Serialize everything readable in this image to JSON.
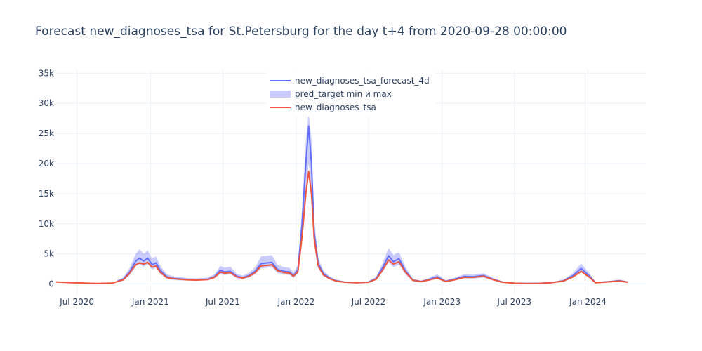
{
  "chart_data": {
    "type": "line",
    "title": "Forecast new_diagnoses_tsa for St.Petersburg for the day t+4 from 2020-09-28 00:00:00",
    "xlabel": "",
    "ylabel": "",
    "xlim": [
      "2020-05-10",
      "2024-05-25"
    ],
    "ylim": [
      -1800,
      35500
    ],
    "grid": true,
    "legend_position": "top-center",
    "x_ticks": [
      {
        "date": "2020-07-01",
        "label": "Jul 2020"
      },
      {
        "date": "2021-01-01",
        "label": "Jan 2021"
      },
      {
        "date": "2021-07-01",
        "label": "Jul 2021"
      },
      {
        "date": "2022-01-01",
        "label": "Jan 2022"
      },
      {
        "date": "2022-07-01",
        "label": "Jul 2022"
      },
      {
        "date": "2023-01-01",
        "label": "Jan 2023"
      },
      {
        "date": "2023-07-01",
        "label": "Jul 2023"
      },
      {
        "date": "2024-01-01",
        "label": "Jan 2024"
      }
    ],
    "y_ticks": [
      {
        "value": 0,
        "label": "0"
      },
      {
        "value": 5000,
        "label": "5k"
      },
      {
        "value": 10000,
        "label": "10k"
      },
      {
        "value": 15000,
        "label": "15k"
      },
      {
        "value": 20000,
        "label": "20k"
      },
      {
        "value": 25000,
        "label": "25k"
      },
      {
        "value": 30000,
        "label": "30k"
      },
      {
        "value": 35000,
        "label": "35k"
      }
    ],
    "legend": [
      {
        "name": "new_diagnoses_tsa_forecast_4d",
        "color": "#636efa",
        "kind": "line"
      },
      {
        "name": "pred_target min и max",
        "color": "rgba(99,110,250,0.35)",
        "kind": "band"
      },
      {
        "name": "new_diagnoses_tsa",
        "color": "#ef553b",
        "kind": "line"
      }
    ],
    "series": [
      {
        "name": "new_diagnoses_tsa",
        "color": "#ef553b",
        "points": [
          [
            "2020-05-10",
            350
          ],
          [
            "2020-06-01",
            280
          ],
          [
            "2020-06-20",
            200
          ],
          [
            "2020-07-10",
            180
          ],
          [
            "2020-08-01",
            120
          ],
          [
            "2020-08-20",
            100
          ],
          [
            "2020-09-10",
            120
          ],
          [
            "2020-09-28",
            150
          ],
          [
            "2020-10-10",
            400
          ],
          [
            "2020-10-25",
            700
          ],
          [
            "2020-11-10",
            1800
          ],
          [
            "2020-11-25",
            3200
          ],
          [
            "2020-12-05",
            3500
          ],
          [
            "2020-12-15",
            3300
          ],
          [
            "2020-12-25",
            3600
          ],
          [
            "2021-01-05",
            2800
          ],
          [
            "2021-01-15",
            3000
          ],
          [
            "2021-01-25",
            2000
          ],
          [
            "2021-02-10",
            1100
          ],
          [
            "2021-02-25",
            900
          ],
          [
            "2021-03-15",
            800
          ],
          [
            "2021-04-05",
            700
          ],
          [
            "2021-04-25",
            650
          ],
          [
            "2021-05-10",
            700
          ],
          [
            "2021-05-25",
            750
          ],
          [
            "2021-06-10",
            1100
          ],
          [
            "2021-06-25",
            2000
          ],
          [
            "2021-07-05",
            1800
          ],
          [
            "2021-07-20",
            1900
          ],
          [
            "2021-08-05",
            1200
          ],
          [
            "2021-08-20",
            1000
          ],
          [
            "2021-09-05",
            1300
          ],
          [
            "2021-09-20",
            1900
          ],
          [
            "2021-10-05",
            3000
          ],
          [
            "2021-10-20",
            3100
          ],
          [
            "2021-11-01",
            3200
          ],
          [
            "2021-11-15",
            2200
          ],
          [
            "2021-12-01",
            1900
          ],
          [
            "2021-12-15",
            1800
          ],
          [
            "2021-12-25",
            1300
          ],
          [
            "2022-01-05",
            2000
          ],
          [
            "2022-01-15",
            7500
          ],
          [
            "2022-01-25",
            15000
          ],
          [
            "2022-02-01",
            18700
          ],
          [
            "2022-02-08",
            15000
          ],
          [
            "2022-02-15",
            7500
          ],
          [
            "2022-02-25",
            3000
          ],
          [
            "2022-03-10",
            1500
          ],
          [
            "2022-03-25",
            900
          ],
          [
            "2022-04-10",
            500
          ],
          [
            "2022-05-01",
            300
          ],
          [
            "2022-06-01",
            200
          ],
          [
            "2022-07-01",
            300
          ],
          [
            "2022-07-20",
            800
          ],
          [
            "2022-08-05",
            2300
          ],
          [
            "2022-08-20",
            4000
          ],
          [
            "2022-09-01",
            3300
          ],
          [
            "2022-09-15",
            3700
          ],
          [
            "2022-10-01",
            2000
          ],
          [
            "2022-10-20",
            600
          ],
          [
            "2022-11-10",
            400
          ],
          [
            "2022-12-01",
            700
          ],
          [
            "2022-12-20",
            1000
          ],
          [
            "2023-01-10",
            400
          ],
          [
            "2023-02-01",
            700
          ],
          [
            "2023-02-25",
            1100
          ],
          [
            "2023-03-20",
            1100
          ],
          [
            "2023-04-15",
            1300
          ],
          [
            "2023-05-10",
            700
          ],
          [
            "2023-06-01",
            300
          ],
          [
            "2023-07-01",
            120
          ],
          [
            "2023-08-01",
            80
          ],
          [
            "2023-09-01",
            100
          ],
          [
            "2023-10-01",
            200
          ],
          [
            "2023-11-01",
            500
          ],
          [
            "2023-11-25",
            1200
          ],
          [
            "2023-12-15",
            2100
          ],
          [
            "2024-01-05",
            1100
          ],
          [
            "2024-01-20",
            200
          ],
          [
            "2024-02-10",
            300
          ],
          [
            "2024-03-01",
            400
          ],
          [
            "2024-03-20",
            500
          ],
          [
            "2024-04-10",
            300
          ]
        ]
      },
      {
        "name": "new_diagnoses_tsa_forecast_4d",
        "color": "#636efa",
        "points": [
          [
            "2020-10-10",
            450
          ],
          [
            "2020-10-25",
            800
          ],
          [
            "2020-11-10",
            2000
          ],
          [
            "2020-11-25",
            3800
          ],
          [
            "2020-12-05",
            4300
          ],
          [
            "2020-12-15",
            3800
          ],
          [
            "2020-12-25",
            4300
          ],
          [
            "2021-01-05",
            3200
          ],
          [
            "2021-01-15",
            3500
          ],
          [
            "2021-01-25",
            2300
          ],
          [
            "2021-02-10",
            1250
          ],
          [
            "2021-02-25",
            950
          ],
          [
            "2021-03-15",
            850
          ],
          [
            "2021-04-05",
            750
          ],
          [
            "2021-04-25",
            700
          ],
          [
            "2021-05-10",
            750
          ],
          [
            "2021-05-25",
            800
          ],
          [
            "2021-06-10",
            1200
          ],
          [
            "2021-06-25",
            2300
          ],
          [
            "2021-07-05",
            2000
          ],
          [
            "2021-07-20",
            2100
          ],
          [
            "2021-08-05",
            1300
          ],
          [
            "2021-08-20",
            1050
          ],
          [
            "2021-09-05",
            1400
          ],
          [
            "2021-09-20",
            2100
          ],
          [
            "2021-10-05",
            3400
          ],
          [
            "2021-10-20",
            3500
          ],
          [
            "2021-11-01",
            3600
          ],
          [
            "2021-11-15",
            2400
          ],
          [
            "2021-12-01",
            2100
          ],
          [
            "2021-12-15",
            2000
          ],
          [
            "2021-12-25",
            1400
          ],
          [
            "2022-01-05",
            2300
          ],
          [
            "2022-01-15",
            9500
          ],
          [
            "2022-01-25",
            20000
          ],
          [
            "2022-02-01",
            26200
          ],
          [
            "2022-02-08",
            20000
          ],
          [
            "2022-02-15",
            8500
          ],
          [
            "2022-02-25",
            3400
          ],
          [
            "2022-03-10",
            1700
          ],
          [
            "2022-03-25",
            1000
          ],
          [
            "2022-04-10",
            550
          ],
          [
            "2022-05-01",
            330
          ],
          [
            "2022-06-01",
            220
          ],
          [
            "2022-07-01",
            330
          ],
          [
            "2022-07-20",
            900
          ],
          [
            "2022-08-05",
            2700
          ],
          [
            "2022-08-20",
            4700
          ],
          [
            "2022-09-01",
            3700
          ],
          [
            "2022-09-15",
            4200
          ],
          [
            "2022-10-01",
            2200
          ],
          [
            "2022-10-20",
            650
          ],
          [
            "2022-11-10",
            420
          ],
          [
            "2022-12-01",
            800
          ],
          [
            "2022-12-20",
            1200
          ],
          [
            "2023-01-10",
            450
          ],
          [
            "2023-02-01",
            800
          ],
          [
            "2023-02-25",
            1250
          ],
          [
            "2023-03-20",
            1200
          ],
          [
            "2023-04-15",
            1400
          ],
          [
            "2023-05-10",
            750
          ],
          [
            "2023-06-01",
            330
          ],
          [
            "2023-07-01",
            130
          ],
          [
            "2023-08-01",
            90
          ],
          [
            "2023-09-01",
            110
          ],
          [
            "2023-10-01",
            220
          ],
          [
            "2023-11-01",
            550
          ],
          [
            "2023-11-25",
            1400
          ],
          [
            "2023-12-15",
            2600
          ],
          [
            "2024-01-05",
            1300
          ],
          [
            "2024-01-20",
            230
          ],
          [
            "2024-02-10",
            330
          ],
          [
            "2024-03-01",
            430
          ],
          [
            "2024-03-20",
            550
          ],
          [
            "2024-04-10",
            320
          ]
        ]
      }
    ],
    "band": {
      "name": "pred_target min и max",
      "color": "rgba(99,110,250,0.35)",
      "points": [
        [
          "2020-10-10",
          300,
          650
        ],
        [
          "2020-10-25",
          550,
          1100
        ],
        [
          "2020-11-10",
          1400,
          2700
        ],
        [
          "2020-11-25",
          2900,
          5000
        ],
        [
          "2020-12-05",
          3300,
          5800
        ],
        [
          "2020-12-15",
          2900,
          5000
        ],
        [
          "2020-12-25",
          3300,
          5600
        ],
        [
          "2021-01-05",
          2400,
          4200
        ],
        [
          "2021-01-15",
          2700,
          4600
        ],
        [
          "2021-01-25",
          1700,
          3100
        ],
        [
          "2021-02-10",
          900,
          1700
        ],
        [
          "2021-02-25",
          700,
          1300
        ],
        [
          "2021-03-15",
          600,
          1150
        ],
        [
          "2021-04-05",
          550,
          1000
        ],
        [
          "2021-04-25",
          500,
          950
        ],
        [
          "2021-05-10",
          550,
          1000
        ],
        [
          "2021-05-25",
          600,
          1100
        ],
        [
          "2021-06-10",
          900,
          1600
        ],
        [
          "2021-06-25",
          1700,
          3000
        ],
        [
          "2021-07-05",
          1500,
          2700
        ],
        [
          "2021-07-20",
          1600,
          2900
        ],
        [
          "2021-08-05",
          950,
          1700
        ],
        [
          "2021-08-20",
          800,
          1400
        ],
        [
          "2021-09-05",
          1050,
          1900
        ],
        [
          "2021-09-20",
          1600,
          2800
        ],
        [
          "2021-10-05",
          2600,
          4600
        ],
        [
          "2021-10-20",
          2700,
          4700
        ],
        [
          "2021-11-01",
          2800,
          4800
        ],
        [
          "2021-11-15",
          1800,
          3200
        ],
        [
          "2021-12-01",
          1600,
          2800
        ],
        [
          "2021-12-15",
          1500,
          2700
        ],
        [
          "2021-12-25",
          1000,
          1900
        ],
        [
          "2022-01-05",
          1700,
          3100
        ],
        [
          "2022-01-15",
          7000,
          12000
        ],
        [
          "2022-01-25",
          15500,
          24000
        ],
        [
          "2022-02-01",
          20000,
          28500
        ],
        [
          "2022-02-08",
          15500,
          24000
        ],
        [
          "2022-02-15",
          6500,
          10500
        ],
        [
          "2022-02-25",
          2600,
          4300
        ],
        [
          "2022-03-10",
          1300,
          2200
        ],
        [
          "2022-03-25",
          750,
          1300
        ],
        [
          "2022-04-10",
          400,
          750
        ],
        [
          "2022-05-01",
          250,
          450
        ],
        [
          "2022-06-01",
          150,
          300
        ],
        [
          "2022-07-01",
          250,
          450
        ],
        [
          "2022-07-20",
          650,
          1200
        ],
        [
          "2022-08-05",
          2000,
          3500
        ],
        [
          "2022-08-20",
          3600,
          6000
        ],
        [
          "2022-09-01",
          2800,
          4800
        ],
        [
          "2022-09-15",
          3200,
          5300
        ],
        [
          "2022-10-01",
          1600,
          2900
        ],
        [
          "2022-10-20",
          480,
          850
        ],
        [
          "2022-11-10",
          300,
          560
        ],
        [
          "2022-12-01",
          600,
          1050
        ],
        [
          "2022-12-20",
          900,
          1600
        ],
        [
          "2023-01-10",
          330,
          600
        ],
        [
          "2023-02-01",
          600,
          1050
        ],
        [
          "2023-02-25",
          950,
          1600
        ],
        [
          "2023-03-20",
          900,
          1550
        ],
        [
          "2023-04-15",
          1050,
          1800
        ],
        [
          "2023-05-10",
          560,
          980
        ],
        [
          "2023-06-01",
          250,
          430
        ],
        [
          "2023-07-01",
          90,
          170
        ],
        [
          "2023-08-01",
          60,
          120
        ],
        [
          "2023-09-01",
          80,
          150
        ],
        [
          "2023-10-01",
          160,
          290
        ],
        [
          "2023-11-01",
          420,
          720
        ],
        [
          "2023-11-25",
          1050,
          1850
        ],
        [
          "2023-12-15",
          2000,
          3400
        ],
        [
          "2024-01-05",
          1000,
          1750
        ],
        [
          "2024-01-20",
          170,
          310
        ],
        [
          "2024-02-10",
          250,
          440
        ],
        [
          "2024-03-01",
          320,
          570
        ],
        [
          "2024-03-20",
          420,
          720
        ],
        [
          "2024-04-10",
          240,
          420
        ]
      ]
    }
  }
}
